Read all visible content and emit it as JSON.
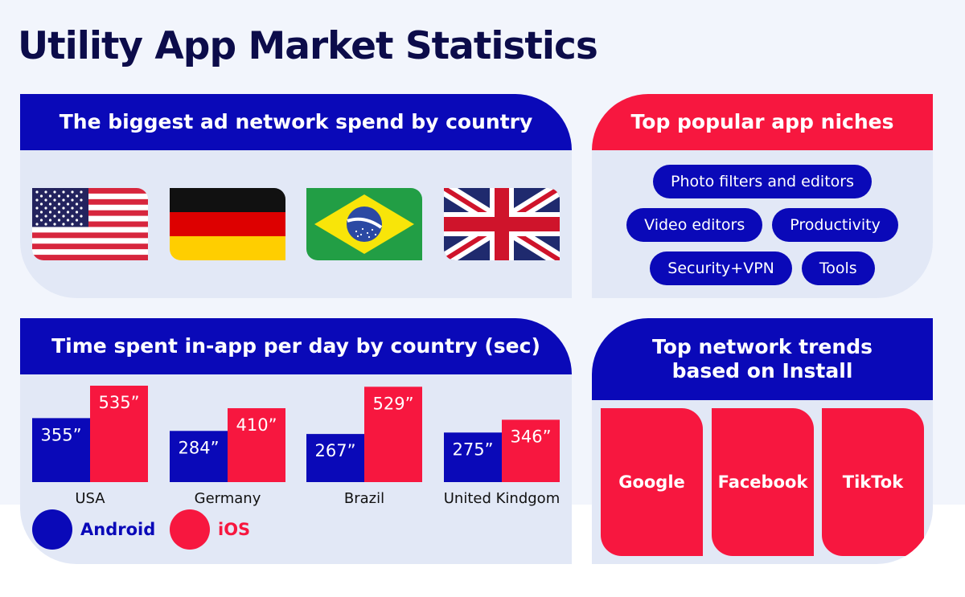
{
  "title": "Utility App Market Statistics",
  "colors": {
    "blue": "#0a09b8",
    "red": "#f7173f",
    "panel": "#e2e8f6",
    "navy": "#0c0c4a"
  },
  "ad_spend": {
    "header": "The biggest ad network spend by country",
    "flags": [
      "usa-flag-icon",
      "germany-flag-icon",
      "brazil-flag-icon",
      "uk-flag-icon"
    ]
  },
  "niches": {
    "header": "Top popular app niches",
    "items": [
      "Photo filters and editors",
      "Video editors",
      "Productivity",
      "Security+VPN",
      "Tools"
    ]
  },
  "time_spent": {
    "header": "Time spent in-app per day by country (sec)"
  },
  "legend": {
    "android": "Android",
    "ios": "iOS"
  },
  "trends": {
    "header_line1": "Top network trends",
    "header_line2": "based on Install",
    "items": [
      "Google",
      "Facebook",
      "TikTok"
    ]
  },
  "chart_data": {
    "type": "bar",
    "title": "Time spent in-app per day by country (sec)",
    "categories": [
      "USA",
      "Germany",
      "Brazil",
      "United Kindgom"
    ],
    "series": [
      {
        "name": "Android",
        "values": [
          355,
          284,
          267,
          275
        ],
        "labels": [
          "355”",
          "284”",
          "267”",
          "275”"
        ],
        "color": "#0a09b8"
      },
      {
        "name": "iOS",
        "values": [
          535,
          410,
          529,
          346
        ],
        "labels": [
          "535”",
          "410”",
          "529”",
          "346”"
        ],
        "color": "#f7173f"
      }
    ],
    "ylim": [
      0,
      535
    ],
    "grid": false,
    "legend": "bottom-left"
  }
}
